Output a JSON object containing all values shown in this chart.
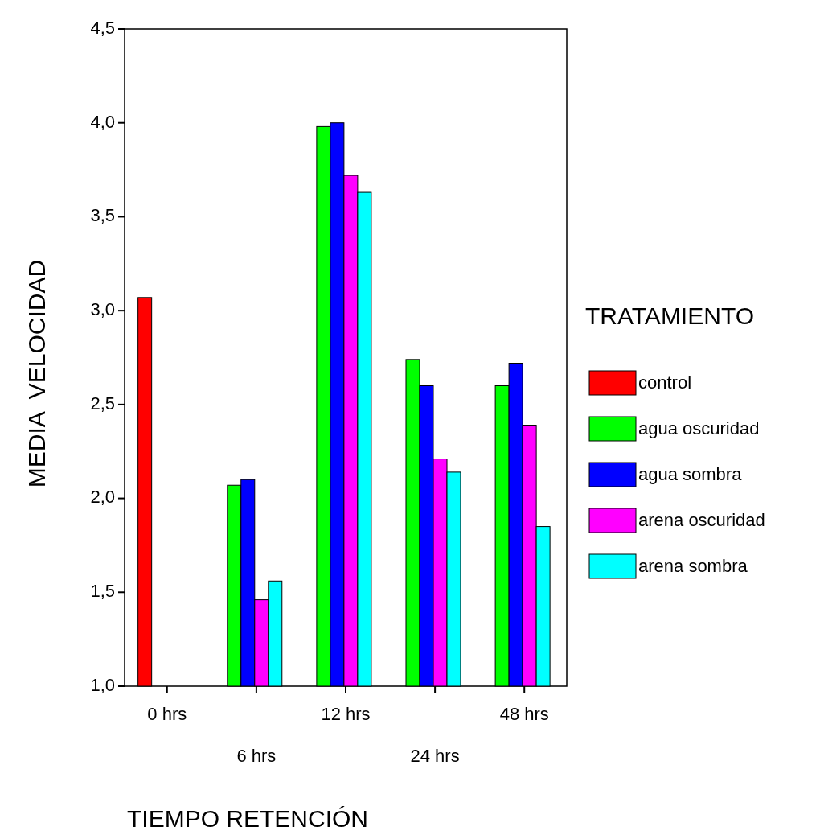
{
  "chart_data": {
    "type": "bar",
    "xlabel": "TIEMPO RETENCIÓN",
    "ylabel": "MEDIA  VELOCIDAD",
    "legend_title": "TRATAMIENTO",
    "legend": "right",
    "categories": [
      "0 hrs",
      "6 hrs",
      "12 hrs",
      "24 hrs",
      "48 hrs"
    ],
    "ylim": [
      1.0,
      4.5
    ],
    "yticks": [
      {
        "value": 1.0,
        "label": "1,0"
      },
      {
        "value": 1.5,
        "label": "1,5"
      },
      {
        "value": 2.0,
        "label": "2,0"
      },
      {
        "value": 2.5,
        "label": "2,5"
      },
      {
        "value": 3.0,
        "label": "3,0"
      },
      {
        "value": 3.5,
        "label": "3,5"
      },
      {
        "value": 4.0,
        "label": "4,0"
      },
      {
        "value": 4.5,
        "label": "4,5"
      }
    ],
    "series": [
      {
        "name": "control",
        "color": "#ff0000",
        "values": [
          3.07,
          null,
          null,
          null,
          null
        ]
      },
      {
        "name": "agua oscuridad",
        "color": "#00ff00",
        "values": [
          null,
          2.07,
          3.98,
          2.74,
          2.6
        ]
      },
      {
        "name": "agua sombra",
        "color": "#0000ff",
        "values": [
          null,
          2.1,
          4.0,
          2.6,
          2.72
        ]
      },
      {
        "name": "arena oscuridad",
        "color": "#ff00ff",
        "values": [
          null,
          1.46,
          3.72,
          2.21,
          2.39
        ]
      },
      {
        "name": "arena sombra",
        "color": "#00ffff",
        "values": [
          null,
          1.56,
          3.63,
          2.14,
          1.85
        ]
      }
    ]
  }
}
